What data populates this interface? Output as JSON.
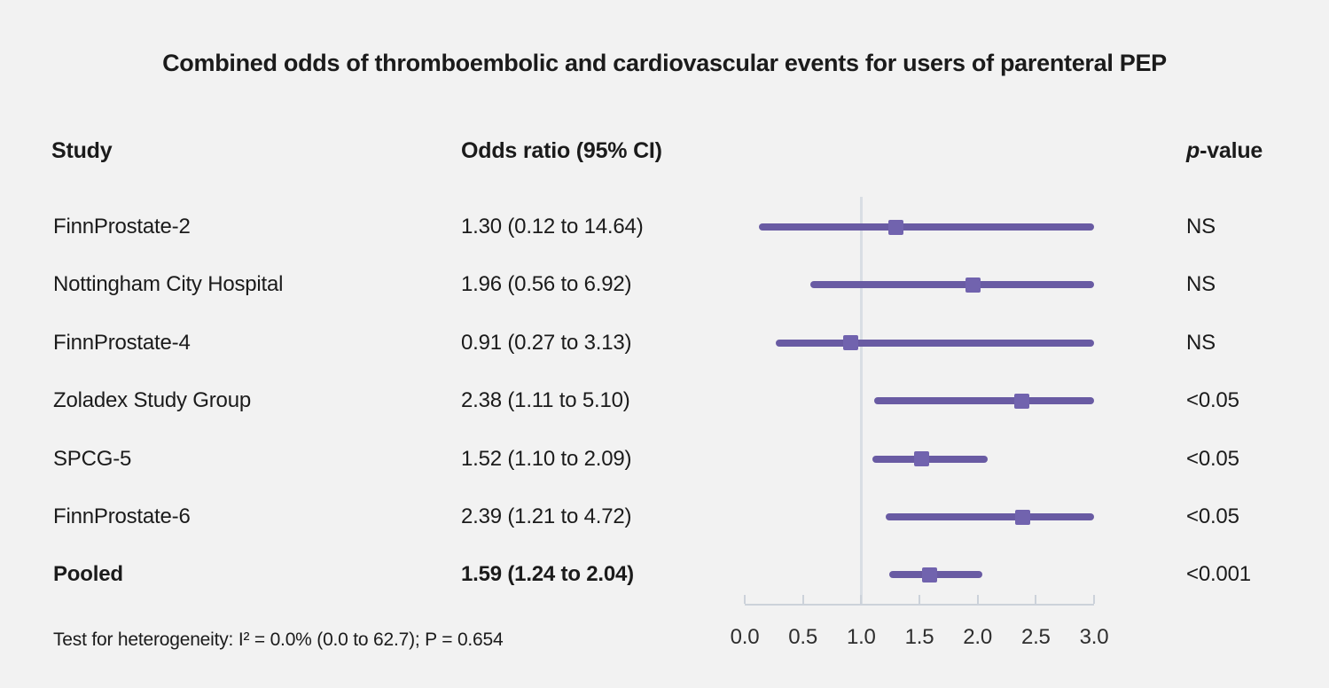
{
  "title": "Combined odds of thromboembolic and cardiovascular events for users of parenteral PEP",
  "columns": {
    "study": "Study",
    "odds_ratio": "Odds ratio (95% CI)",
    "p_value_italic": "p",
    "p_value_rest": "-value"
  },
  "chart_data": {
    "type": "forest",
    "title": "Combined odds of thromboembolic and cardiovascular events for users of parenteral PEP",
    "xlim": [
      0.0,
      3.0
    ],
    "reference_line": 1.0,
    "tick_labels": [
      "0.0",
      "0.5",
      "1.0",
      "1.5",
      "2.0",
      "2.5",
      "3.0"
    ],
    "rows": [
      {
        "study": "FinnProstate-2",
        "or_label": "1.30 (0.12 to 14.64)",
        "estimate": 1.3,
        "ci_low": 0.12,
        "ci_high": 14.64,
        "p_value": "NS",
        "bold": false
      },
      {
        "study": "Nottingham City Hospital",
        "or_label": "1.96 (0.56 to 6.92)",
        "estimate": 1.96,
        "ci_low": 0.56,
        "ci_high": 6.92,
        "p_value": "NS",
        "bold": false
      },
      {
        "study": "FinnProstate-4",
        "or_label": "0.91 (0.27 to 3.13)",
        "estimate": 0.91,
        "ci_low": 0.27,
        "ci_high": 3.13,
        "p_value": "NS",
        "bold": false
      },
      {
        "study": "Zoladex Study Group",
        "or_label": "2.38 (1.11 to 5.10)",
        "estimate": 2.38,
        "ci_low": 1.11,
        "ci_high": 5.1,
        "p_value": "<0.05",
        "bold": false
      },
      {
        "study": "SPCG-5",
        "or_label": "1.52 (1.10 to 2.09)",
        "estimate": 1.52,
        "ci_low": 1.1,
        "ci_high": 2.09,
        "p_value": "<0.05",
        "bold": false
      },
      {
        "study": "FinnProstate-6",
        "or_label": "2.39 (1.21 to 4.72)",
        "estimate": 2.39,
        "ci_low": 1.21,
        "ci_high": 4.72,
        "p_value": "<0.05",
        "bold": false
      },
      {
        "study": "Pooled",
        "or_label": "1.59 (1.24 to 2.04)",
        "estimate": 1.59,
        "ci_low": 1.24,
        "ci_high": 2.04,
        "p_value": "<0.001",
        "bold": true
      }
    ],
    "footnote": "Test for heterogeneity: I² = 0.0% (0.0 to 62.7); P = 0.654"
  },
  "colors": {
    "background": "#f2f2f2",
    "ci_line": "#695ba3",
    "marker": "#7163ae",
    "reference_line": "#d9dee4",
    "axis": "#ccd2da",
    "text": "#1b1b1b"
  }
}
